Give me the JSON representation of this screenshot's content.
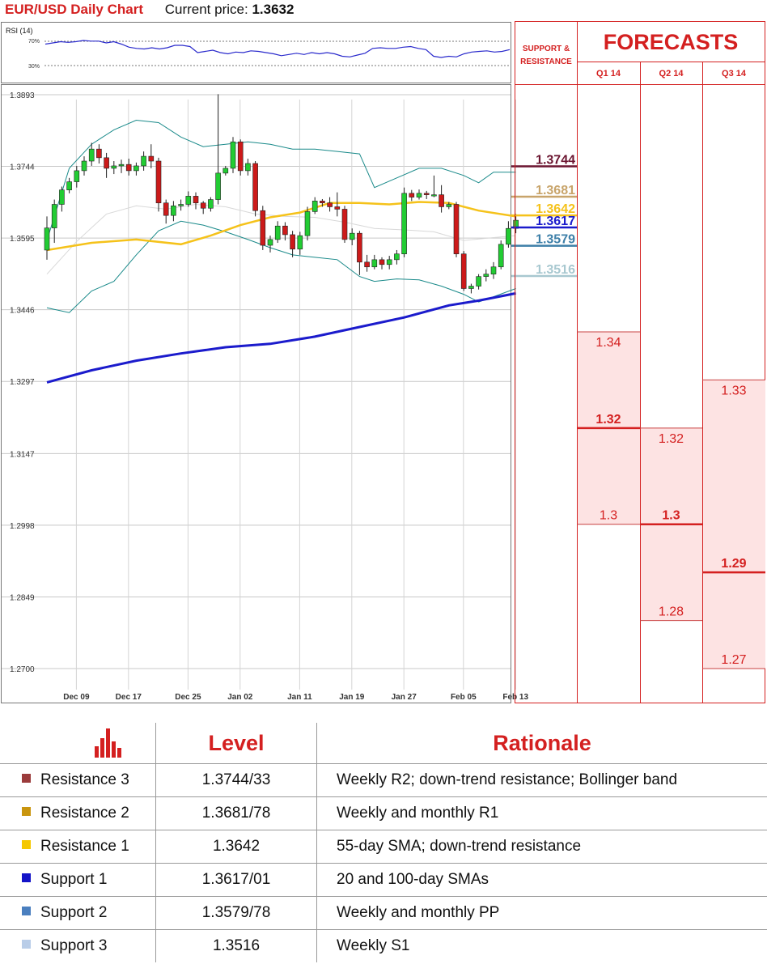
{
  "header": {
    "title": "EUR/USD Daily Chart",
    "price_label": "Current price:",
    "price_value": "1.3632"
  },
  "rsi": {
    "label": "RSI (14)",
    "level_high": "70%",
    "level_low": "30%",
    "values": [
      62,
      64,
      66,
      65,
      66,
      68,
      67,
      67,
      64,
      66,
      62,
      57,
      55,
      54,
      56,
      54,
      56,
      60,
      60,
      58,
      48,
      50,
      52,
      48,
      46,
      49,
      48,
      51,
      50,
      48,
      46,
      43,
      45,
      47,
      45,
      48,
      46,
      48,
      46,
      42,
      41,
      44,
      47,
      55,
      56,
      55,
      55,
      57,
      58,
      55,
      53,
      42,
      40,
      42,
      41,
      46,
      49,
      50,
      51,
      49,
      50,
      53
    ]
  },
  "support_resistance_header": [
    "SUPPORT &",
    "RESISTANCE"
  ],
  "forecasts_title": "FORECASTS",
  "colors": {
    "brand_red": "#d42020",
    "candle_up": "#22cc33",
    "candle_down": "#cc1a1a",
    "sma_100": "#1b1bcc",
    "sma_55": "#f5c21a",
    "bollinger": "#1a8a8a",
    "forecast_fill": "#fde3e3"
  },
  "chart_data": {
    "type": "candlestick",
    "title": "EUR/USD Daily Chart",
    "y_ticks": [
      "1.3893",
      "1.3744",
      "1.3595",
      "1.3446",
      "1.3297",
      "1.3147",
      "1.2998",
      "1.2849",
      "1.2700"
    ],
    "ylim": [
      1.27,
      1.3893
    ],
    "x_ticks": [
      "Dec 09",
      "Dec 17",
      "Dec 25",
      "Jan 02",
      "Jan 11",
      "Jan 19",
      "Jan 27",
      "Feb 05",
      "Feb 13"
    ],
    "x_tick_index": [
      2,
      9,
      17,
      24,
      32,
      39,
      46,
      54,
      61
    ],
    "x_count": 64,
    "candles": [
      [
        1.357,
        1.3616,
        1.355,
        1.364
      ],
      [
        1.3616,
        1.3665,
        1.3585,
        1.3675
      ],
      [
        1.3665,
        1.3695,
        1.365,
        1.3702
      ],
      [
        1.3695,
        1.3712,
        1.3688,
        1.372
      ],
      [
        1.3712,
        1.3735,
        1.37,
        1.3745
      ],
      [
        1.3735,
        1.3755,
        1.3725,
        1.3765
      ],
      [
        1.3755,
        1.378,
        1.3745,
        1.3793
      ],
      [
        1.378,
        1.3762,
        1.375,
        1.379
      ],
      [
        1.3762,
        1.374,
        1.372,
        1.3772
      ],
      [
        1.374,
        1.3745,
        1.3728,
        1.3755
      ],
      [
        1.3745,
        1.3748,
        1.373,
        1.3758
      ],
      [
        1.3748,
        1.3735,
        1.3725,
        1.376
      ],
      [
        1.3735,
        1.3745,
        1.3725,
        1.3752
      ],
      [
        1.3745,
        1.3765,
        1.3735,
        1.3775
      ],
      [
        1.3765,
        1.3755,
        1.374,
        1.379
      ],
      [
        1.3755,
        1.3668,
        1.365,
        1.3762
      ],
      [
        1.3668,
        1.3642,
        1.3625,
        1.3675
      ],
      [
        1.3642,
        1.3662,
        1.363,
        1.3672
      ],
      [
        1.3662,
        1.3665,
        1.3652,
        1.3675
      ],
      [
        1.3665,
        1.3682,
        1.366,
        1.3692
      ],
      [
        1.3682,
        1.3668,
        1.3655,
        1.369
      ],
      [
        1.3668,
        1.3657,
        1.3645,
        1.3672
      ],
      [
        1.3657,
        1.3675,
        1.365,
        1.368
      ],
      [
        1.3675,
        1.373,
        1.3665,
        1.3894
      ],
      [
        1.373,
        1.374,
        1.3725,
        1.3745
      ],
      [
        1.374,
        1.3795,
        1.373,
        1.3805
      ],
      [
        1.3795,
        1.3735,
        1.3725,
        1.38
      ],
      [
        1.3735,
        1.375,
        1.3725,
        1.376
      ],
      [
        1.375,
        1.3652,
        1.364,
        1.3755
      ],
      [
        1.3652,
        1.358,
        1.357,
        1.3662
      ],
      [
        1.358,
        1.3592,
        1.3565,
        1.36
      ],
      [
        1.3592,
        1.362,
        1.3585,
        1.363
      ],
      [
        1.362,
        1.3602,
        1.359,
        1.3628
      ],
      [
        1.3602,
        1.3572,
        1.3555,
        1.361
      ],
      [
        1.3572,
        1.36,
        1.356,
        1.3608
      ],
      [
        1.36,
        1.365,
        1.359,
        1.366
      ],
      [
        1.365,
        1.3672,
        1.3645,
        1.368
      ],
      [
        1.3672,
        1.3668,
        1.366,
        1.3676
      ],
      [
        1.3668,
        1.366,
        1.365,
        1.368
      ],
      [
        1.366,
        1.3655,
        1.364,
        1.369
      ],
      [
        1.3655,
        1.3592,
        1.3585,
        1.3662
      ],
      [
        1.3592,
        1.3605,
        1.358,
        1.3615
      ],
      [
        1.3605,
        1.3545,
        1.3518,
        1.361
      ],
      [
        1.3545,
        1.3535,
        1.3525,
        1.356
      ],
      [
        1.3535,
        1.355,
        1.353,
        1.356
      ],
      [
        1.355,
        1.354,
        1.353,
        1.3555
      ],
      [
        1.354,
        1.355,
        1.353,
        1.3558
      ],
      [
        1.355,
        1.3562,
        1.354,
        1.357
      ],
      [
        1.3562,
        1.3688,
        1.3555,
        1.37
      ],
      [
        1.3688,
        1.368,
        1.3672,
        1.3695
      ],
      [
        1.368,
        1.3688,
        1.3675,
        1.3696
      ],
      [
        1.3688,
        1.3685,
        1.3676,
        1.3693
      ],
      [
        1.3685,
        1.3685,
        1.368,
        1.3725
      ],
      [
        1.3685,
        1.366,
        1.3648,
        1.3705
      ],
      [
        1.366,
        1.3665,
        1.3655,
        1.367
      ],
      [
        1.3665,
        1.3562,
        1.3555,
        1.367
      ],
      [
        1.3562,
        1.349,
        1.3485,
        1.3568
      ],
      [
        1.349,
        1.3495,
        1.348,
        1.35
      ],
      [
        1.3495,
        1.3515,
        1.3488,
        1.352
      ],
      [
        1.3515,
        1.352,
        1.3505,
        1.353
      ],
      [
        1.352,
        1.3535,
        1.351,
        1.3545
      ],
      [
        1.3535,
        1.3582,
        1.353,
        1.359
      ],
      [
        1.3582,
        1.3615,
        1.3575,
        1.363
      ],
      [
        1.3615,
        1.3632,
        1.3605,
        1.3645
      ]
    ],
    "sma_100": [
      [
        0,
        1.3295
      ],
      [
        6,
        1.332
      ],
      [
        12,
        1.334
      ],
      [
        18,
        1.3355
      ],
      [
        24,
        1.3368
      ],
      [
        30,
        1.3375
      ],
      [
        36,
        1.339
      ],
      [
        42,
        1.341
      ],
      [
        48,
        1.343
      ],
      [
        54,
        1.3455
      ],
      [
        58,
        1.3465
      ],
      [
        63,
        1.348
      ]
    ],
    "sma_55": [
      [
        0,
        1.357
      ],
      [
        6,
        1.3585
      ],
      [
        12,
        1.3592
      ],
      [
        18,
        1.3582
      ],
      [
        22,
        1.36
      ],
      [
        26,
        1.3622
      ],
      [
        30,
        1.3638
      ],
      [
        34,
        1.3648
      ],
      [
        38,
        1.3668
      ],
      [
        42,
        1.3668
      ],
      [
        46,
        1.3665
      ],
      [
        50,
        1.367
      ],
      [
        54,
        1.3668
      ],
      [
        58,
        1.3652
      ],
      [
        63,
        1.364
      ]
    ],
    "bollinger_upper": [
      [
        0,
        1.359
      ],
      [
        3,
        1.374
      ],
      [
        6,
        1.379
      ],
      [
        9,
        1.382
      ],
      [
        12,
        1.384
      ],
      [
        15,
        1.3835
      ],
      [
        18,
        1.3805
      ],
      [
        21,
        1.3785
      ],
      [
        24,
        1.379
      ],
      [
        27,
        1.3795
      ],
      [
        30,
        1.379
      ],
      [
        33,
        1.378
      ],
      [
        36,
        1.378
      ],
      [
        39,
        1.3775
      ],
      [
        42,
        1.377
      ],
      [
        44,
        1.37
      ],
      [
        47,
        1.372
      ],
      [
        50,
        1.374
      ],
      [
        53,
        1.374
      ],
      [
        56,
        1.3725
      ],
      [
        58,
        1.371
      ],
      [
        60,
        1.3732
      ],
      [
        63,
        1.3732
      ]
    ],
    "bollinger_lower": [
      [
        0,
        1.345
      ],
      [
        3,
        1.344
      ],
      [
        6,
        1.3485
      ],
      [
        9,
        1.3505
      ],
      [
        12,
        1.356
      ],
      [
        15,
        1.361
      ],
      [
        18,
        1.363
      ],
      [
        21,
        1.3622
      ],
      [
        24,
        1.3608
      ],
      [
        27,
        1.3592
      ],
      [
        30,
        1.3575
      ],
      [
        33,
        1.356
      ],
      [
        36,
        1.3555
      ],
      [
        39,
        1.355
      ],
      [
        42,
        1.3515
      ],
      [
        44,
        1.3505
      ],
      [
        47,
        1.351
      ],
      [
        50,
        1.3508
      ],
      [
        53,
        1.3495
      ],
      [
        56,
        1.3478
      ],
      [
        58,
        1.3462
      ],
      [
        60,
        1.3473
      ],
      [
        63,
        1.349
      ]
    ],
    "bollinger_mid": [
      [
        0,
        1.352
      ],
      [
        4,
        1.3588
      ],
      [
        8,
        1.3645
      ],
      [
        12,
        1.3662
      ],
      [
        16,
        1.3655
      ],
      [
        20,
        1.3665
      ],
      [
        24,
        1.366
      ],
      [
        28,
        1.3645
      ],
      [
        32,
        1.364
      ],
      [
        36,
        1.3638
      ],
      [
        40,
        1.3628
      ],
      [
        44,
        1.3615
      ],
      [
        48,
        1.3612
      ],
      [
        52,
        1.3608
      ],
      [
        56,
        1.359
      ],
      [
        60,
        1.3596
      ],
      [
        63,
        1.36
      ]
    ]
  },
  "sr_levels": [
    {
      "label": "1.3744",
      "value": 1.3744,
      "color": "#6b1530"
    },
    {
      "label": "1.3681",
      "value": 1.3681,
      "color": "#c8a46a"
    },
    {
      "label": "1.3642",
      "value": 1.3642,
      "color": "#f5c21a"
    },
    {
      "label": "1.3617",
      "value": 1.3617,
      "color": "#1b1bcc"
    },
    {
      "label": "1.3579",
      "value": 1.3579,
      "color": "#3d7fa8"
    },
    {
      "label": "1.3516",
      "value": 1.3516,
      "color": "#a8c8d0"
    }
  ],
  "forecast_columns": [
    {
      "label": "Q1 14",
      "levels": [
        {
          "text": "1.34",
          "value": 1.34,
          "bold": false
        },
        {
          "text": "1.32",
          "value": 1.32,
          "bold": true
        },
        {
          "text": "1.3",
          "value": 1.3,
          "bold": false
        }
      ]
    },
    {
      "label": "Q2 14",
      "levels": [
        {
          "text": "1.32",
          "value": 1.32,
          "bold": false
        },
        {
          "text": "1.3",
          "value": 1.3,
          "bold": true
        },
        {
          "text": "1.28",
          "value": 1.28,
          "bold": false
        }
      ]
    },
    {
      "label": "Q3 14",
      "levels": [
        {
          "text": "1.33",
          "value": 1.33,
          "bold": false
        },
        {
          "text": "1.29",
          "value": 1.29,
          "bold": true
        },
        {
          "text": "1.27",
          "value": 1.27,
          "bold": false
        }
      ]
    }
  ],
  "levels_table": {
    "headers": [
      "Level",
      "Rationale"
    ],
    "rows": [
      {
        "name": "Resistance 3",
        "swatch": "#9b3b3b",
        "level": "1.3744/33",
        "rationale": "Weekly R2; down-trend resistance; Bollinger band"
      },
      {
        "name": "Resistance 2",
        "swatch": "#c9950e",
        "level": "1.3681/78",
        "rationale": "Weekly and monthly R1"
      },
      {
        "name": "Resistance 1",
        "swatch": "#f5c800",
        "level": "1.3642",
        "rationale": "55-day SMA; down-trend resistance"
      },
      {
        "name": "Support 1",
        "swatch": "#1414c8",
        "level": "1.3617/01",
        "rationale": "20 and 100-day SMAs"
      },
      {
        "name": "Support 2",
        "swatch": "#4a7fbf",
        "level": "1.3579/78",
        "rationale": "Weekly and monthly PP"
      },
      {
        "name": "Support 3",
        "swatch": "#b9cde8",
        "level": "1.3516",
        "rationale": "Weekly S1"
      }
    ]
  }
}
